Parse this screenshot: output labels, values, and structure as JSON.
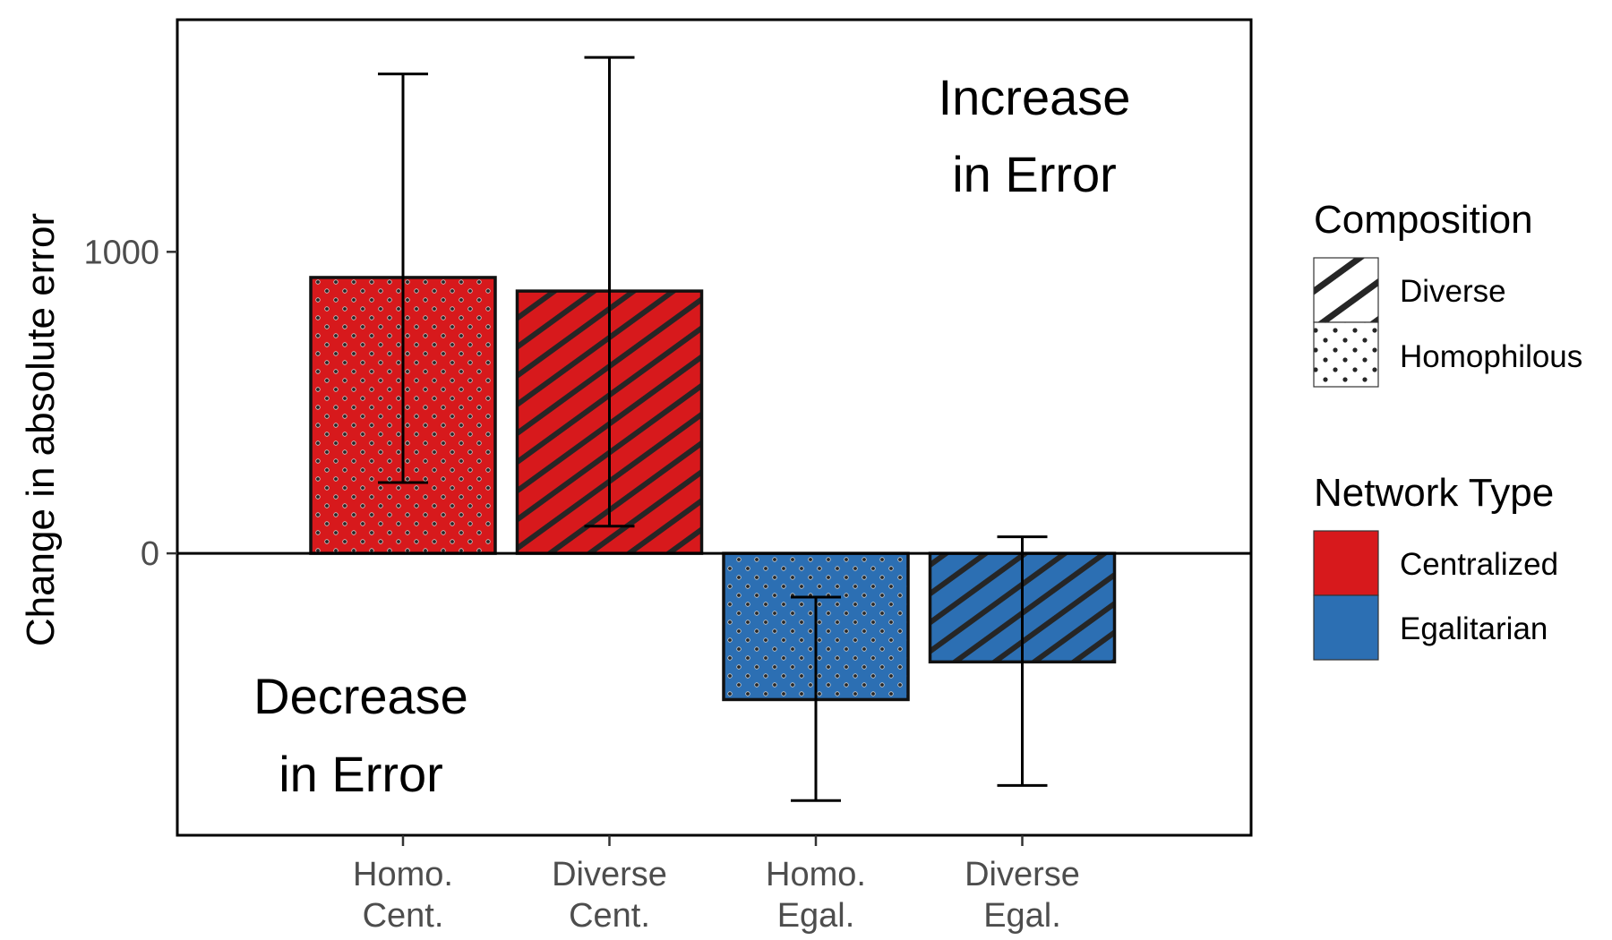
{
  "chart_data": {
    "type": "bar",
    "categories": [
      "Homo.\nCent.",
      "Diverse\nCent.",
      "Homo.\nEgal.",
      "Diverse\nEgal."
    ],
    "values": [
      915,
      870,
      -485,
      -360
    ],
    "error_low": [
      235,
      90,
      -820,
      -770
    ],
    "error_high": [
      1590,
      1645,
      -145,
      55
    ],
    "composition": [
      "Homophilous",
      "Diverse",
      "Homophilous",
      "Diverse"
    ],
    "network_type": [
      "Centralized",
      "Centralized",
      "Egalitarian",
      "Egalitarian"
    ],
    "ylabel": "Change in absolute error",
    "xlabel": "",
    "ylim": [
      -935,
      1770
    ],
    "yticks": [
      0,
      1000
    ],
    "grid": false,
    "annotations": {
      "increase": [
        "Increase",
        "in Error"
      ],
      "decrease": [
        "Decrease",
        "in Error"
      ]
    },
    "legend": {
      "placement": "right",
      "composition_title": "Composition",
      "composition_items": [
        "Diverse",
        "Homophilous"
      ],
      "network_title": "Network Type",
      "network_items": [
        "Centralized",
        "Egalitarian"
      ]
    },
    "colors": {
      "Centralized": "#d7191c",
      "Egalitarian": "#2c6fb3",
      "pattern": "#262626"
    }
  }
}
